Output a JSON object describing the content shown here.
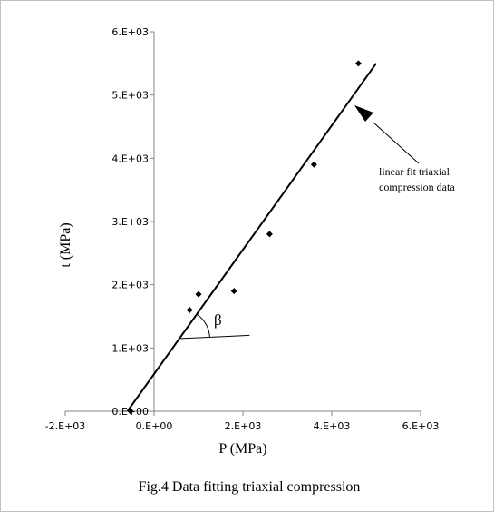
{
  "chart_data": {
    "type": "scatter",
    "title": "",
    "xlabel": "P (MPa)",
    "ylabel": "t (MPa)",
    "xlim": [
      -2000,
      6000
    ],
    "ylim": [
      0,
      6000
    ],
    "x_ticks": [
      -2000,
      0,
      2000,
      4000,
      6000
    ],
    "x_tick_labels": [
      "-2.E+03",
      "0.E+00",
      "2.E+03",
      "4.E+03",
      "6.E+03"
    ],
    "y_ticks": [
      0,
      1000,
      2000,
      3000,
      4000,
      5000,
      6000
    ],
    "y_tick_labels": [
      "0.E+00",
      "1.E+03",
      "2.E+03",
      "3.E+03",
      "4.E+03",
      "5.E+03",
      "6.E+03"
    ],
    "grid": false,
    "series": [
      {
        "points": [
          {
            "x": 800,
            "y": 1600
          },
          {
            "x": 1000,
            "y": 1850
          },
          {
            "x": 1800,
            "y": 1900
          },
          {
            "x": 2600,
            "y": 2800
          },
          {
            "x": 3600,
            "y": 3900
          },
          {
            "x": 4600,
            "y": 5500
          },
          {
            "x": -530,
            "y": 0
          }
        ]
      }
    ],
    "fit_line": {
      "x": [
        -600,
        5000
      ],
      "y": [
        0,
        5500
      ]
    },
    "angle_ref_line": {
      "x": [
        600,
        2150
      ],
      "y": [
        1150,
        1200
      ]
    },
    "annotations": [
      {
        "lines": [
          "linear fit triaxial",
          "compression data"
        ]
      },
      {
        "text": "β"
      }
    ],
    "caption": "Fig.4 Data fitting triaxial compression"
  }
}
